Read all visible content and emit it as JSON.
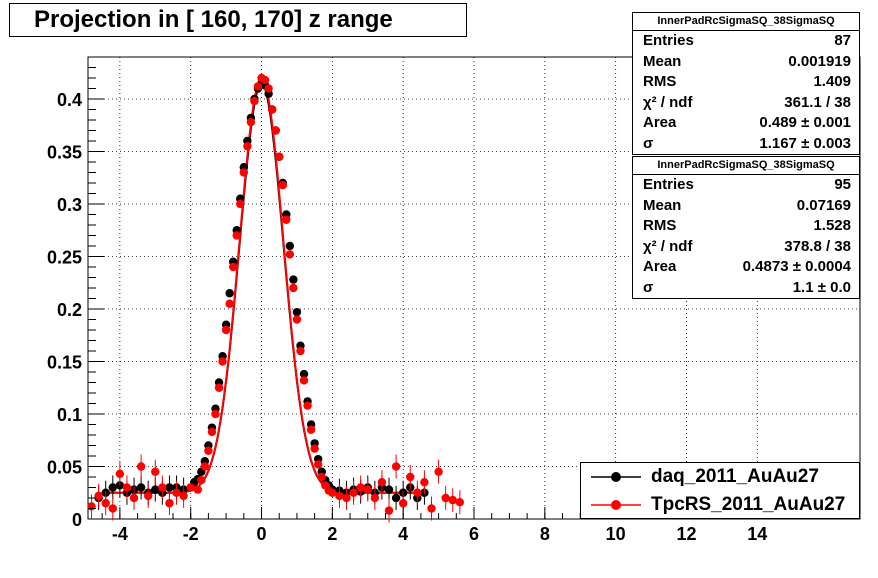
{
  "title": "Projection in [ 160, 170] z range",
  "stats_boxes": [
    {
      "name": "InnerPadRcSigmaSQ_38SigmaSQ",
      "rows": [
        {
          "label": "Entries",
          "value": "87"
        },
        {
          "label": "Mean",
          "value": "0.001919"
        },
        {
          "label": "RMS",
          "value": "1.409"
        },
        {
          "label": "χ² / ndf",
          "value": "361.1 / 38"
        },
        {
          "label": "Area",
          "value": "0.489 ± 0.001"
        },
        {
          "label": "σ",
          "value": "1.167 ± 0.003"
        }
      ]
    },
    {
      "name": "InnerPadRcSigmaSQ_38SigmaSQ",
      "rows": [
        {
          "label": "Entries",
          "value": "95"
        },
        {
          "label": "Mean",
          "value": "0.07169"
        },
        {
          "label": "RMS",
          "value": "1.528"
        },
        {
          "label": "χ² / ndf",
          "value": "378.8 / 38"
        },
        {
          "label": "Area",
          "value": "0.4873 ± 0.0004"
        },
        {
          "label": "σ",
          "value": "1.1 ± 0.0"
        }
      ]
    }
  ],
  "legend": [
    {
      "label": "daq_2011_AuAu27",
      "color": "#000000"
    },
    {
      "label": "TpcRS_2011_AuAu27",
      "color": "#ff0000"
    }
  ],
  "chart_data": {
    "type": "scatter",
    "xlim": [
      -4.9,
      16.9
    ],
    "ylim": [
      0,
      0.44
    ],
    "x_ticks": [
      "-4",
      "-2",
      "0",
      "2",
      "4",
      "6",
      "8",
      "10",
      "12",
      "14"
    ],
    "y_ticks": [
      "0",
      "0.05",
      "0.1",
      "0.15",
      "0.2",
      "0.25",
      "0.3",
      "0.35",
      "0.4"
    ],
    "grid": true,
    "legend_position": "bottom-right",
    "series": [
      {
        "name": "daq_2011_AuAu27",
        "color": "#000000",
        "fit_sigma": 1.167,
        "points": [
          [
            -4.6,
            0.02
          ],
          [
            -4.4,
            0.025
          ],
          [
            -4.2,
            0.03
          ],
          [
            -4.0,
            0.032
          ],
          [
            -3.8,
            0.025
          ],
          [
            -3.6,
            0.028
          ],
          [
            -3.4,
            0.03
          ],
          [
            -3.2,
            0.025
          ],
          [
            -3.0,
            0.028
          ],
          [
            -2.8,
            0.025
          ],
          [
            -2.6,
            0.03
          ],
          [
            -2.4,
            0.03
          ],
          [
            -2.2,
            0.028
          ],
          [
            -2.0,
            0.03
          ],
          [
            -1.9,
            0.035
          ],
          [
            -1.8,
            0.038
          ],
          [
            -1.7,
            0.045
          ],
          [
            -1.6,
            0.055
          ],
          [
            -1.5,
            0.07
          ],
          [
            -1.4,
            0.087
          ],
          [
            -1.3,
            0.105
          ],
          [
            -1.2,
            0.13
          ],
          [
            -1.1,
            0.155
          ],
          [
            -1.0,
            0.185
          ],
          [
            -0.9,
            0.215
          ],
          [
            -0.8,
            0.245
          ],
          [
            -0.7,
            0.275
          ],
          [
            -0.6,
            0.305
          ],
          [
            -0.5,
            0.335
          ],
          [
            -0.4,
            0.36
          ],
          [
            -0.3,
            0.382
          ],
          [
            -0.2,
            0.4
          ],
          [
            -0.1,
            0.41
          ],
          [
            0.0,
            0.415
          ],
          [
            0.1,
            0.413
          ],
          [
            0.2,
            0.405
          ],
          [
            0.3,
            0.39
          ],
          [
            0.4,
            0.37
          ],
          [
            0.5,
            0.345
          ],
          [
            0.6,
            0.32
          ],
          [
            0.7,
            0.29
          ],
          [
            0.8,
            0.26
          ],
          [
            0.9,
            0.228
          ],
          [
            1.0,
            0.197
          ],
          [
            1.1,
            0.165
          ],
          [
            1.2,
            0.138
          ],
          [
            1.3,
            0.112
          ],
          [
            1.4,
            0.09
          ],
          [
            1.5,
            0.072
          ],
          [
            1.6,
            0.057
          ],
          [
            1.7,
            0.045
          ],
          [
            1.8,
            0.037
          ],
          [
            1.9,
            0.032
          ],
          [
            2.0,
            0.028
          ],
          [
            2.2,
            0.027
          ],
          [
            2.4,
            0.025
          ],
          [
            2.6,
            0.028
          ],
          [
            2.8,
            0.026
          ],
          [
            3.0,
            0.03
          ],
          [
            3.2,
            0.025
          ],
          [
            3.4,
            0.03
          ],
          [
            3.6,
            0.028
          ],
          [
            3.8,
            0.02
          ],
          [
            4.0,
            0.025
          ],
          [
            4.2,
            0.03
          ],
          [
            4.4,
            0.02
          ],
          [
            4.6,
            0.025
          ]
        ]
      },
      {
        "name": "TpcRS_2011_AuAu27",
        "color": "#ff0000",
        "fit_sigma": 1.1,
        "points": [
          [
            -4.8,
            0.012
          ],
          [
            -4.6,
            0.022
          ],
          [
            -4.4,
            0.015
          ],
          [
            -4.2,
            0.01
          ],
          [
            -4.0,
            0.043
          ],
          [
            -3.8,
            0.03
          ],
          [
            -3.6,
            0.02
          ],
          [
            -3.4,
            0.05
          ],
          [
            -3.2,
            0.022
          ],
          [
            -3.0,
            0.045
          ],
          [
            -2.8,
            0.03
          ],
          [
            -2.6,
            0.015
          ],
          [
            -2.4,
            0.025
          ],
          [
            -2.2,
            0.022
          ],
          [
            -2.0,
            0.03
          ],
          [
            -1.8,
            0.028
          ],
          [
            -1.7,
            0.037
          ],
          [
            -1.6,
            0.05
          ],
          [
            -1.5,
            0.065
          ],
          [
            -1.4,
            0.083
          ],
          [
            -1.3,
            0.1
          ],
          [
            -1.2,
            0.125
          ],
          [
            -1.1,
            0.15
          ],
          [
            -1.0,
            0.18
          ],
          [
            -0.9,
            0.205
          ],
          [
            -0.8,
            0.24
          ],
          [
            -0.7,
            0.27
          ],
          [
            -0.6,
            0.3
          ],
          [
            -0.5,
            0.33
          ],
          [
            -0.4,
            0.355
          ],
          [
            -0.3,
            0.378
          ],
          [
            -0.2,
            0.398
          ],
          [
            -0.1,
            0.412
          ],
          [
            0.0,
            0.42
          ],
          [
            0.1,
            0.418
          ],
          [
            0.2,
            0.41
          ],
          [
            0.3,
            0.39
          ],
          [
            0.4,
            0.37
          ],
          [
            0.5,
            0.345
          ],
          [
            0.6,
            0.318
          ],
          [
            0.7,
            0.285
          ],
          [
            0.8,
            0.252
          ],
          [
            0.9,
            0.22
          ],
          [
            1.0,
            0.19
          ],
          [
            1.1,
            0.16
          ],
          [
            1.2,
            0.132
          ],
          [
            1.3,
            0.108
          ],
          [
            1.4,
            0.085
          ],
          [
            1.5,
            0.067
          ],
          [
            1.6,
            0.052
          ],
          [
            1.7,
            0.04
          ],
          [
            1.8,
            0.032
          ],
          [
            1.9,
            0.027
          ],
          [
            2.0,
            0.025
          ],
          [
            2.2,
            0.022
          ],
          [
            2.4,
            0.02
          ],
          [
            2.6,
            0.025
          ],
          [
            2.8,
            0.03
          ],
          [
            3.0,
            0.028
          ],
          [
            3.2,
            0.02
          ],
          [
            3.4,
            0.035
          ],
          [
            3.6,
            0.008
          ],
          [
            3.8,
            0.05
          ],
          [
            4.0,
            0.015
          ],
          [
            4.2,
            0.04
          ],
          [
            4.4,
            0.025
          ],
          [
            4.6,
            0.035
          ],
          [
            4.8,
            0.01
          ],
          [
            5.0,
            0.045
          ],
          [
            5.2,
            0.02
          ],
          [
            5.4,
            0.018
          ],
          [
            5.6,
            0.016
          ]
        ]
      }
    ]
  }
}
